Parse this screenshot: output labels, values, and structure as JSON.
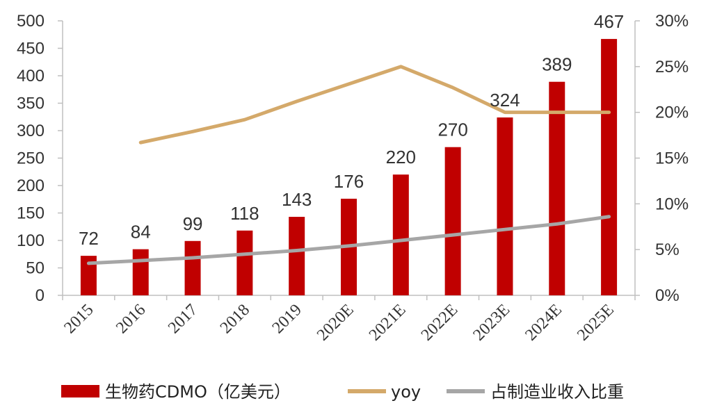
{
  "chart_data": {
    "type": "bar",
    "categories": [
      "2015",
      "2016",
      "2017",
      "2018",
      "2019",
      "2020E",
      "2021E",
      "2022E",
      "2023E",
      "2024E",
      "2025E"
    ],
    "series": [
      {
        "name": "生物药CDMO（亿美元）",
        "type": "bar",
        "axis": "left",
        "color": "#C00000",
        "values": [
          72,
          84,
          99,
          118,
          143,
          176,
          220,
          270,
          324,
          389,
          467
        ],
        "data_labels": [
          "72",
          "84",
          "99",
          "118",
          "143",
          "176",
          "220",
          "270",
          "324",
          "389",
          "467"
        ]
      },
      {
        "name": "yoy",
        "type": "line",
        "axis": "right",
        "color": "#D4A96A",
        "values": [
          null,
          16.7,
          17.9,
          19.2,
          21.2,
          23.1,
          25.0,
          22.7,
          20.0,
          20.0,
          20.0
        ]
      },
      {
        "name": "占制造业收入比重",
        "type": "line",
        "axis": "right",
        "color": "#A6A6A6",
        "values": [
          3.5,
          3.8,
          4.1,
          4.5,
          4.9,
          5.4,
          6.0,
          6.6,
          7.2,
          7.8,
          8.6
        ]
      }
    ],
    "y_left": {
      "min": 0,
      "max": 500,
      "ticks": [
        "0",
        "50",
        "100",
        "150",
        "200",
        "250",
        "300",
        "350",
        "400",
        "450",
        "500"
      ]
    },
    "y_right": {
      "min": 0,
      "max": 30,
      "ticks": [
        "0%",
        "5%",
        "10%",
        "15%",
        "20%",
        "25%",
        "30%"
      ]
    },
    "legend_position": "bottom",
    "grid": false
  }
}
